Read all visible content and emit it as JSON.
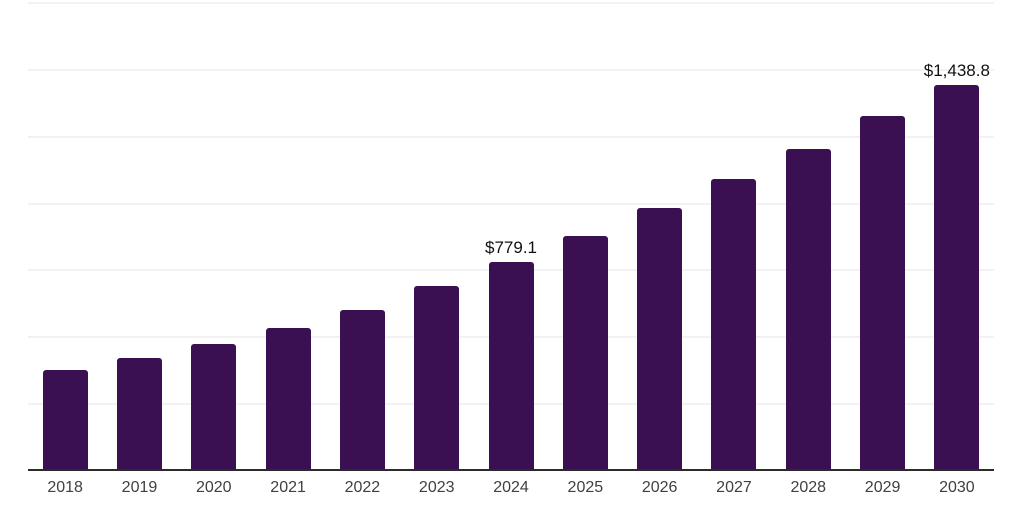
{
  "chart_data": {
    "type": "bar",
    "categories": [
      "2018",
      "2019",
      "2020",
      "2021",
      "2022",
      "2023",
      "2024",
      "2025",
      "2026",
      "2027",
      "2028",
      "2029",
      "2030"
    ],
    "values": [
      375,
      420,
      470,
      532,
      598,
      687,
      779.1,
      877,
      981,
      1089,
      1200,
      1323,
      1438.8
    ],
    "labeled_points": [
      {
        "category": "2024",
        "label": "$779.1"
      },
      {
        "category": "2030",
        "label": "$1,438.8"
      }
    ],
    "ylim": [
      0,
      1750
    ],
    "gridline_step": 250,
    "grid": true,
    "legend": "none",
    "colors": {
      "bar": "#3A1052",
      "axis_line": "#2B2B2B",
      "gridline": "#F2F2F2",
      "tick_label": "#404040",
      "value_label": "#111111",
      "background": "#FFFFFF"
    }
  }
}
